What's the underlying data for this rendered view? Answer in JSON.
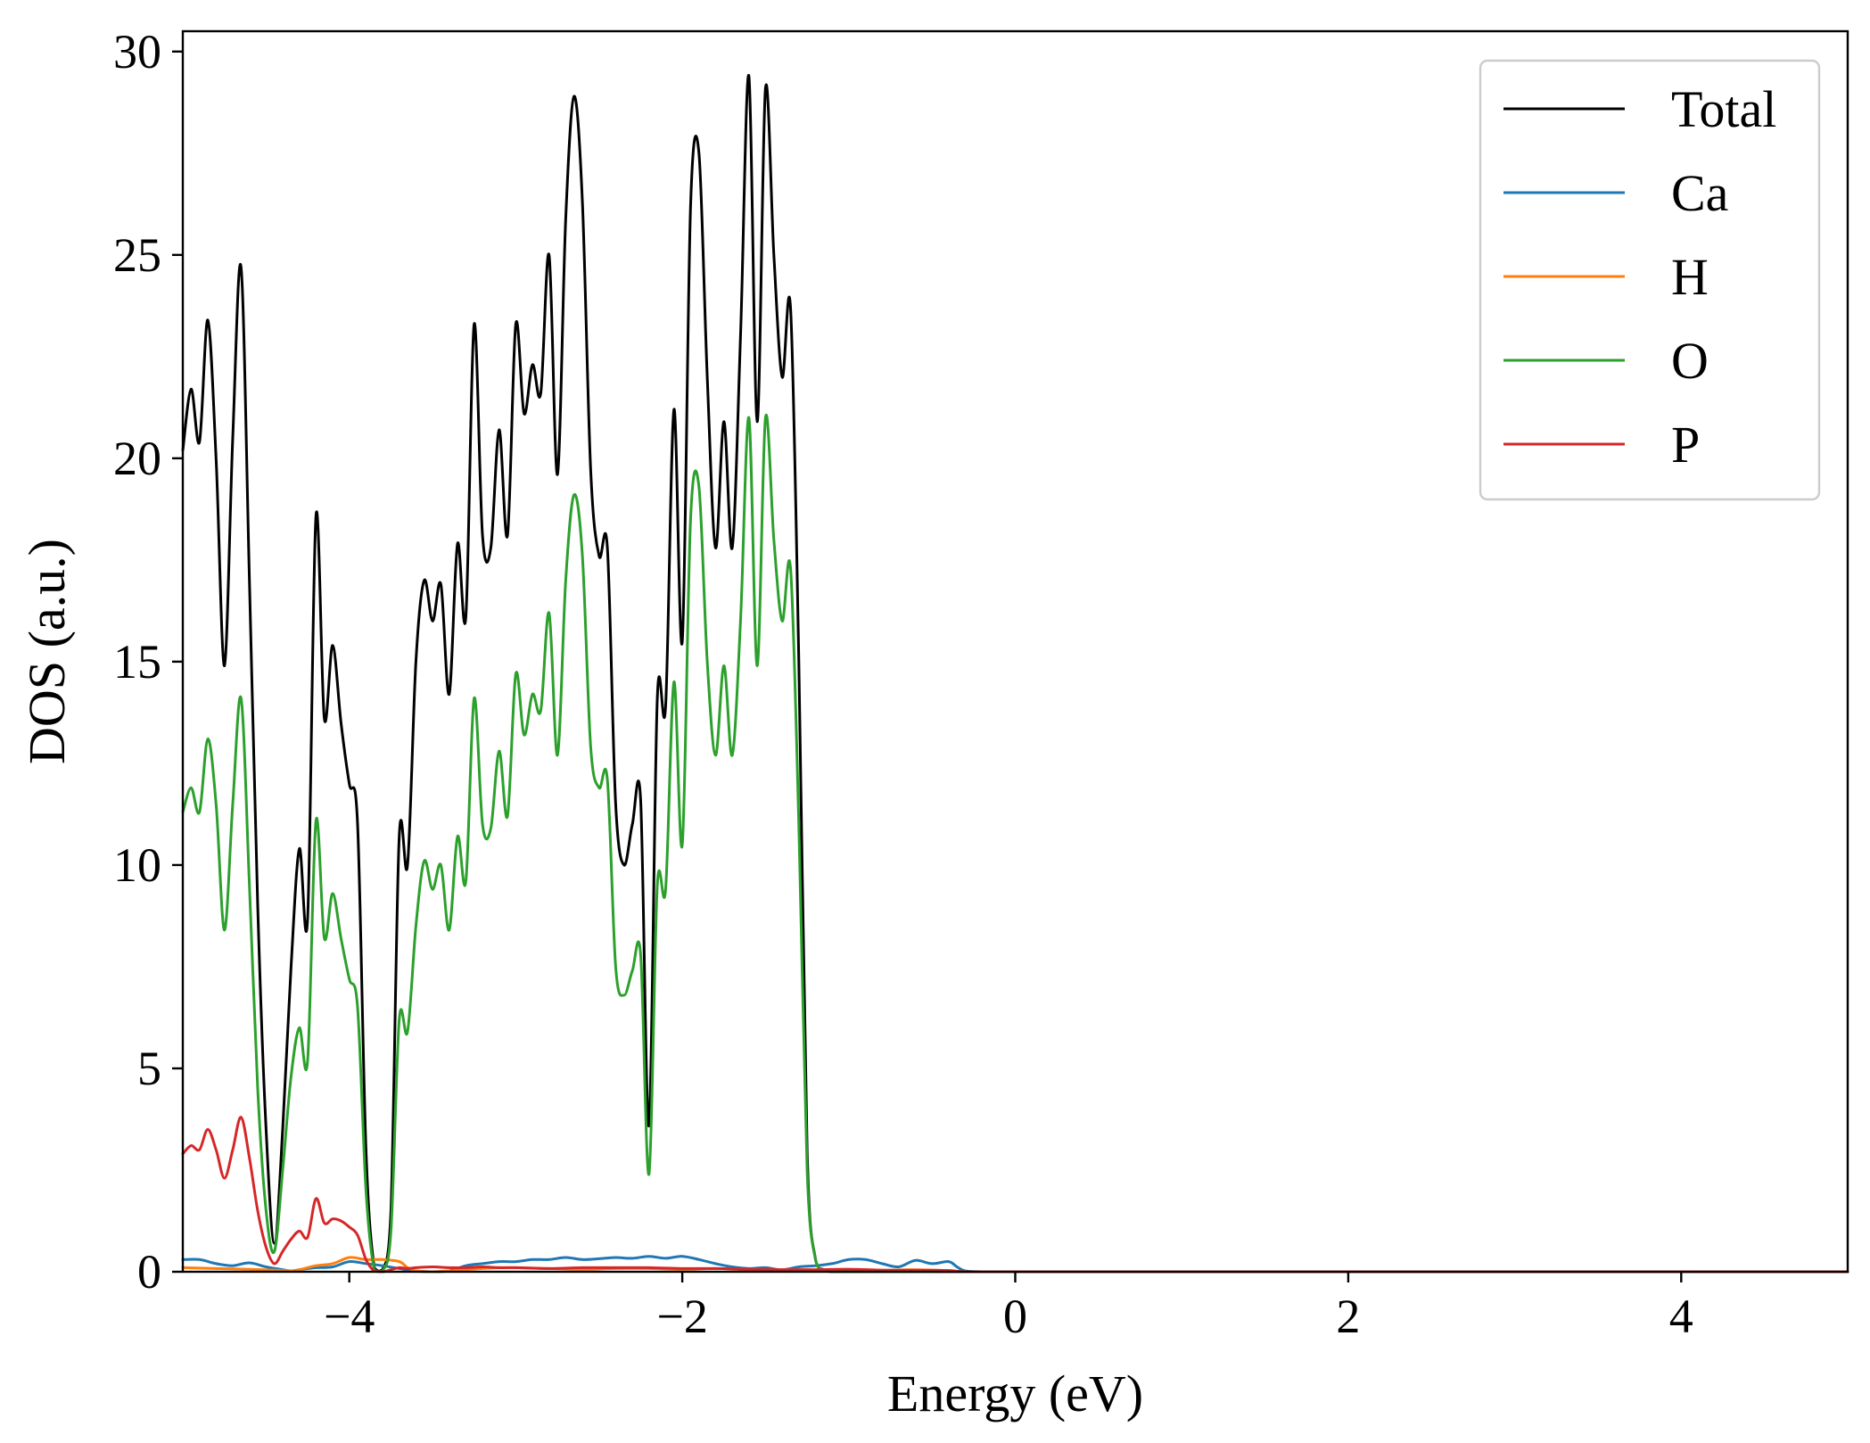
{
  "chart_data": {
    "type": "line",
    "title": "",
    "xlabel": "Energy (eV)",
    "ylabel": "DOS (a.u.)",
    "xlim": [
      -5,
      5
    ],
    "ylim": [
      0,
      30.5
    ],
    "xticks": [
      -4,
      -2,
      0,
      2,
      4
    ],
    "yticks": [
      0,
      5,
      10,
      15,
      20,
      25,
      30
    ],
    "xtick_labels": [
      "−4",
      "−2",
      "0",
      "2",
      "4"
    ],
    "ytick_labels": [
      "0",
      "5",
      "10",
      "15",
      "20",
      "25",
      "30"
    ],
    "grid": false,
    "legend_position": "top-right",
    "series": [
      {
        "name": "Total",
        "color": "#000000",
        "x": [
          -5.0,
          -4.95,
          -4.9,
          -4.85,
          -4.8,
          -4.75,
          -4.7,
          -4.65,
          -4.6,
          -4.55,
          -4.5,
          -4.45,
          -4.4,
          -4.35,
          -4.3,
          -4.25,
          -4.2,
          -4.15,
          -4.1,
          -4.05,
          -4.0,
          -3.95,
          -3.9,
          -3.85,
          -3.8,
          -3.75,
          -3.7,
          -3.65,
          -3.6,
          -3.55,
          -3.5,
          -3.45,
          -3.4,
          -3.35,
          -3.3,
          -3.25,
          -3.2,
          -3.15,
          -3.1,
          -3.05,
          -3.0,
          -2.95,
          -2.9,
          -2.85,
          -2.8,
          -2.75,
          -2.7,
          -2.65,
          -2.6,
          -2.55,
          -2.5,
          -2.45,
          -2.4,
          -2.35,
          -2.3,
          -2.25,
          -2.2,
          -2.15,
          -2.1,
          -2.05,
          -2.0,
          -1.95,
          -1.9,
          -1.85,
          -1.8,
          -1.75,
          -1.7,
          -1.65,
          -1.6,
          -1.55,
          -1.5,
          -1.45,
          -1.4,
          -1.35,
          -1.3,
          -1.25,
          -1.2,
          -1.15,
          -1.1,
          -1.05,
          -1.0,
          -0.95,
          -0.9,
          -0.85,
          -0.8,
          -0.75,
          -0.7,
          -0.65,
          -0.6,
          -0.55,
          -0.5,
          -0.45,
          -0.4,
          -0.37,
          -0.33,
          -0.3,
          -0.25,
          -0.2,
          0.0,
          2.0,
          5.0
        ],
        "y": [
          20.2,
          21.7,
          20.4,
          23.4,
          20.0,
          14.9,
          20.5,
          24.7,
          17.0,
          9.0,
          3.5,
          0.7,
          3.5,
          7.5,
          10.4,
          8.7,
          18.6,
          13.6,
          15.4,
          13.5,
          12.0,
          11.0,
          3.0,
          0.1,
          0.05,
          1.5,
          10.7,
          10.0,
          15.0,
          17.0,
          16.0,
          16.9,
          14.2,
          17.9,
          16.1,
          23.3,
          18.1,
          17.8,
          20.7,
          18.1,
          23.3,
          21.1,
          22.3,
          21.6,
          25.0,
          19.6,
          25.9,
          28.9,
          26.3,
          19.7,
          17.6,
          17.8,
          11.5,
          10.0,
          11.0,
          11.6,
          3.6,
          14.1,
          13.9,
          21.2,
          15.5,
          26.2,
          27.5,
          22.0,
          17.8,
          20.9,
          17.8,
          23.0,
          29.4,
          20.9,
          29.1,
          25.0,
          22.0,
          23.7,
          15.0,
          3.0,
          0.3,
          0.05,
          0.0,
          0.0,
          0.0,
          0.0,
          0.0,
          0.0,
          0.0,
          0.0,
          0.0,
          0.0,
          0.0,
          0.0,
          0.0,
          0.0,
          0.0,
          0.0,
          0.0,
          0.0,
          0.0,
          0.0,
          0.0,
          0.0,
          0.0
        ]
      },
      {
        "name": "Ca",
        "color": "#1f77b4",
        "x": [
          -5.0,
          -4.9,
          -4.8,
          -4.7,
          -4.6,
          -4.5,
          -4.4,
          -4.35,
          -4.3,
          -4.2,
          -4.1,
          -4.0,
          -3.9,
          -3.8,
          -3.7,
          -3.6,
          -3.5,
          -3.4,
          -3.3,
          -3.2,
          -3.1,
          -3.0,
          -2.9,
          -2.8,
          -2.7,
          -2.6,
          -2.5,
          -2.4,
          -2.3,
          -2.2,
          -2.1,
          -2.0,
          -1.9,
          -1.8,
          -1.7,
          -1.6,
          -1.5,
          -1.4,
          -1.3,
          -1.2,
          -1.1,
          -1.0,
          -0.9,
          -0.8,
          -0.7,
          -0.6,
          -0.5,
          -0.4,
          -0.35,
          -0.3,
          -0.2,
          0.0,
          5.0
        ],
        "y": [
          0.3,
          0.3,
          0.2,
          0.15,
          0.22,
          0.12,
          0.05,
          0.02,
          0.05,
          0.1,
          0.12,
          0.25,
          0.2,
          0.15,
          0.08,
          0.02,
          0.0,
          0.02,
          0.15,
          0.2,
          0.25,
          0.25,
          0.3,
          0.3,
          0.35,
          0.3,
          0.32,
          0.35,
          0.33,
          0.38,
          0.33,
          0.38,
          0.3,
          0.2,
          0.12,
          0.08,
          0.1,
          0.05,
          0.12,
          0.15,
          0.2,
          0.3,
          0.3,
          0.2,
          0.12,
          0.28,
          0.2,
          0.25,
          0.12,
          0.02,
          0.0,
          0.0,
          0.0
        ]
      },
      {
        "name": "H",
        "color": "#ff7f0e",
        "x": [
          -5.0,
          -4.8,
          -4.6,
          -4.4,
          -4.35,
          -4.3,
          -4.2,
          -4.1,
          -4.0,
          -3.9,
          -3.8,
          -3.7,
          -3.65,
          -3.6,
          -3.5,
          -3.4,
          -3.3,
          -3.2,
          -3.1,
          -3.0,
          -2.8,
          -2.6,
          -2.4,
          -2.2,
          -2.0,
          -1.8,
          -1.6,
          -1.4,
          -1.2,
          -1.0,
          -0.8,
          -0.6,
          -0.4,
          -0.3,
          0.0,
          5.0
        ],
        "y": [
          0.1,
          0.08,
          0.06,
          0.03,
          0.02,
          0.05,
          0.15,
          0.2,
          0.35,
          0.3,
          0.3,
          0.25,
          0.1,
          0.02,
          0.0,
          0.02,
          0.05,
          0.08,
          0.1,
          0.1,
          0.08,
          0.06,
          0.08,
          0.08,
          0.06,
          0.08,
          0.05,
          0.05,
          0.05,
          0.06,
          0.04,
          0.05,
          0.03,
          0.0,
          0.0,
          0.0
        ]
      },
      {
        "name": "O",
        "color": "#2ca02c",
        "x": [
          -5.0,
          -4.95,
          -4.9,
          -4.85,
          -4.8,
          -4.75,
          -4.7,
          -4.65,
          -4.6,
          -4.55,
          -4.5,
          -4.45,
          -4.4,
          -4.35,
          -4.3,
          -4.25,
          -4.2,
          -4.15,
          -4.1,
          -4.05,
          -4.0,
          -3.95,
          -3.9,
          -3.85,
          -3.8,
          -3.75,
          -3.7,
          -3.65,
          -3.6,
          -3.55,
          -3.5,
          -3.45,
          -3.4,
          -3.35,
          -3.3,
          -3.25,
          -3.2,
          -3.15,
          -3.1,
          -3.05,
          -3.0,
          -2.95,
          -2.9,
          -2.85,
          -2.8,
          -2.75,
          -2.7,
          -2.65,
          -2.6,
          -2.55,
          -2.5,
          -2.45,
          -2.4,
          -2.35,
          -2.3,
          -2.25,
          -2.2,
          -2.15,
          -2.1,
          -2.05,
          -2.0,
          -1.95,
          -1.9,
          -1.85,
          -1.8,
          -1.75,
          -1.7,
          -1.65,
          -1.6,
          -1.55,
          -1.5,
          -1.45,
          -1.4,
          -1.35,
          -1.3,
          -1.25,
          -1.2,
          -1.15,
          -1.1,
          -1.05,
          -1.0,
          -0.95,
          -0.9,
          -0.85,
          -0.8,
          -0.75,
          -0.7,
          -0.65,
          -0.6,
          -0.55,
          -0.5,
          -0.45,
          -0.4,
          -0.37,
          -0.33,
          -0.3,
          -0.25,
          -0.2,
          0.0,
          2.0,
          5.0
        ],
        "y": [
          11.3,
          11.9,
          11.3,
          13.1,
          11.5,
          8.4,
          11.5,
          14.1,
          9.5,
          4.5,
          1.5,
          0.5,
          2.5,
          4.8,
          6.0,
          5.2,
          11.1,
          8.2,
          9.3,
          8.2,
          7.2,
          6.5,
          2.0,
          0.05,
          0.02,
          1.0,
          6.2,
          5.9,
          8.5,
          10.1,
          9.4,
          10.0,
          8.4,
          10.7,
          9.6,
          14.1,
          11.0,
          10.9,
          12.8,
          11.2,
          14.7,
          13.2,
          14.2,
          13.8,
          16.2,
          12.7,
          17.0,
          19.1,
          17.6,
          12.9,
          11.9,
          12.1,
          7.5,
          6.8,
          7.4,
          7.8,
          2.4,
          9.5,
          9.4,
          14.5,
          10.5,
          18.5,
          19.3,
          15.0,
          12.7,
          14.9,
          12.7,
          16.0,
          21.0,
          14.9,
          21.0,
          18.0,
          16.0,
          17.3,
          11.0,
          2.5,
          0.3,
          0.05,
          0.0,
          0.0,
          0.0,
          0.0,
          0.0,
          0.0,
          0.0,
          0.0,
          0.0,
          0.0,
          0.0,
          0.0,
          0.0,
          0.0,
          0.0,
          0.0,
          0.0,
          0.0,
          0.0,
          0.0,
          0.0,
          0.0,
          0.0
        ]
      },
      {
        "name": "P",
        "color": "#d62728",
        "x": [
          -5.0,
          -4.95,
          -4.9,
          -4.85,
          -4.8,
          -4.75,
          -4.7,
          -4.65,
          -4.6,
          -4.55,
          -4.5,
          -4.45,
          -4.4,
          -4.35,
          -4.3,
          -4.25,
          -4.2,
          -4.15,
          -4.1,
          -4.05,
          -4.0,
          -3.95,
          -3.9,
          -3.85,
          -3.8,
          -3.75,
          -3.7,
          -3.65,
          -3.6,
          -3.5,
          -3.4,
          -3.3,
          -3.2,
          -3.1,
          -3.0,
          -2.8,
          -2.6,
          -2.4,
          -2.2,
          -2.0,
          -1.8,
          -1.6,
          -1.4,
          -1.2,
          -1.0,
          -0.8,
          -0.6,
          -0.4,
          -0.3,
          0.0,
          5.0
        ],
        "y": [
          2.9,
          3.1,
          3.0,
          3.5,
          3.0,
          2.3,
          3.0,
          3.8,
          2.8,
          1.5,
          0.6,
          0.2,
          0.5,
          0.8,
          1.0,
          0.85,
          1.8,
          1.2,
          1.3,
          1.25,
          1.1,
          0.9,
          0.3,
          0.02,
          0.0,
          0.05,
          0.1,
          0.08,
          0.1,
          0.12,
          0.1,
          0.1,
          0.12,
          0.1,
          0.1,
          0.08,
          0.1,
          0.1,
          0.1,
          0.08,
          0.08,
          0.06,
          0.05,
          0.05,
          0.06,
          0.04,
          0.04,
          0.03,
          0.0,
          0.0,
          0.0
        ]
      }
    ]
  }
}
